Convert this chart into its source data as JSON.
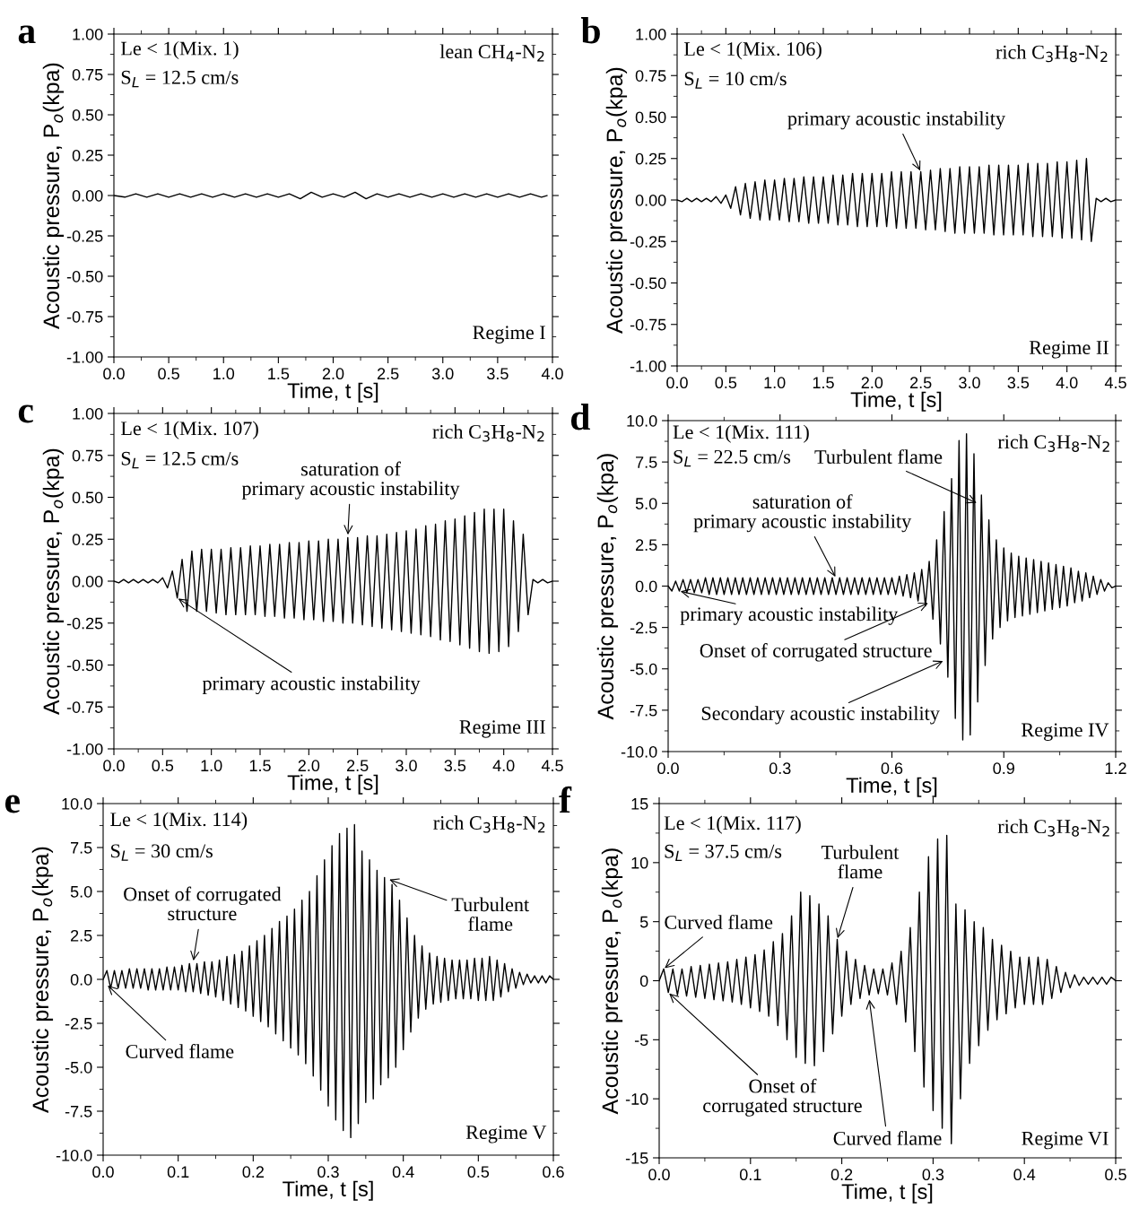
{
  "chart_data": [
    {
      "type": "line",
      "title": "a",
      "xlabel": "Time, t [s]",
      "ylabel": "Acoustic pressure, P$_{o}$(kpa)",
      "xlim": [
        0,
        4
      ],
      "xticks": [
        {
          "value": 0,
          "label": "0.0"
        },
        {
          "value": 0.5,
          "label": "0.5"
        },
        {
          "value": 1,
          "label": "1.0"
        },
        {
          "value": 1.5,
          "label": "1.5"
        },
        {
          "value": 2,
          "label": "2.0"
        },
        {
          "value": 2.5,
          "label": "2.5"
        },
        {
          "value": 3,
          "label": "3.0"
        },
        {
          "value": 3.5,
          "label": "3.5"
        },
        {
          "value": 4,
          "label": "4.0"
        }
      ],
      "ylim": [
        -1,
        1
      ],
      "yticks": [
        {
          "value": -1,
          "label": "-1.00"
        },
        {
          "value": -0.75,
          "label": "-0.75"
        },
        {
          "value": -0.5,
          "label": "-0.50"
        },
        {
          "value": -0.25,
          "label": "-0.25"
        },
        {
          "value": 0,
          "label": "0.00"
        },
        {
          "value": 0.25,
          "label": "0.25"
        },
        {
          "value": 0.5,
          "label": "0.50"
        },
        {
          "value": 0.75,
          "label": "0.75"
        },
        {
          "value": 1,
          "label": "1.00"
        }
      ],
      "annotations": [
        "Le < 1(Mix. 1)",
        "S$_{L}$ = 12.5 cm/s",
        "lean CH$_{4}$-N$_{2}$",
        "Regime I"
      ],
      "series": [
        {
          "color": "#000000",
          "x": [
            0,
            0.1,
            0.2,
            0.3,
            0.4,
            0.5,
            0.6,
            0.7,
            0.8,
            0.9,
            1.0,
            1.1,
            1.2,
            1.3,
            1.4,
            1.5,
            1.6,
            1.7,
            1.8,
            1.9,
            2.0,
            2.1,
            2.2,
            2.3,
            2.4,
            2.5,
            2.6,
            2.7,
            2.8,
            2.9,
            3.0,
            3.1,
            3.2,
            3.3,
            3.4,
            3.5,
            3.6,
            3.7,
            3.8,
            3.9,
            3.95
          ],
          "values": [
            0,
            -0.01,
            0.01,
            -0.01,
            0.01,
            -0.01,
            0.01,
            -0.01,
            0.01,
            -0.01,
            0.01,
            -0.01,
            0.01,
            -0.01,
            0.01,
            -0.01,
            0.01,
            -0.02,
            0.02,
            -0.01,
            0.01,
            -0.01,
            0.02,
            -0.02,
            0.01,
            -0.01,
            0.01,
            -0.01,
            0.01,
            -0.01,
            0.01,
            -0.01,
            0.01,
            -0.01,
            0.01,
            -0.01,
            0.01,
            -0.01,
            0.01,
            -0.01,
            0
          ]
        }
      ]
    },
    {
      "type": "line",
      "title": "b",
      "xlabel": "Time, t [s]",
      "ylabel": "Acoustic pressure, P$_{o}$(kpa)",
      "xlim": [
        0,
        4.5
      ],
      "xticks": [
        {
          "value": 0,
          "label": "0.0"
        },
        {
          "value": 0.5,
          "label": "0.5"
        },
        {
          "value": 1,
          "label": "1.0"
        },
        {
          "value": 1.5,
          "label": "1.5"
        },
        {
          "value": 2,
          "label": "2.0"
        },
        {
          "value": 2.5,
          "label": "2.5"
        },
        {
          "value": 3,
          "label": "3.0"
        },
        {
          "value": 3.5,
          "label": "3.5"
        },
        {
          "value": 4,
          "label": "4.0"
        },
        {
          "value": 4.5,
          "label": "4.5"
        }
      ],
      "ylim": [
        -1,
        1
      ],
      "yticks": [
        {
          "value": -1,
          "label": "-1.00"
        },
        {
          "value": -0.75,
          "label": "-0.75"
        },
        {
          "value": -0.5,
          "label": "-0.50"
        },
        {
          "value": -0.25,
          "label": "-0.25"
        },
        {
          "value": 0,
          "label": "0.00"
        },
        {
          "value": 0.25,
          "label": "0.25"
        },
        {
          "value": 0.5,
          "label": "0.50"
        },
        {
          "value": 0.75,
          "label": "0.75"
        },
        {
          "value": 1,
          "label": "1.00"
        }
      ],
      "annotations": [
        "Le < 1(Mix. 106)",
        "S$_{L}$ = 10 cm/s",
        "rich C$_{3}$H$_{8}$-N$_{2}$",
        {
          "text": "primary acoustic instability",
          "x": 2.5,
          "y": 0.17
        },
        "Regime II"
      ],
      "series": [
        {
          "color": "#000000",
          "x": [
            0,
            0.05,
            0.1,
            0.15,
            0.2,
            0.25,
            0.3,
            0.35,
            0.4,
            0.45,
            0.5,
            0.55,
            0.6,
            0.65,
            0.7,
            0.75,
            0.8,
            0.85,
            0.9,
            0.95,
            1.0,
            1.05,
            1.1,
            1.15,
            1.2,
            1.25,
            1.3,
            1.35,
            1.4,
            1.45,
            1.5,
            1.55,
            1.6,
            1.65,
            1.7,
            1.75,
            1.8,
            1.85,
            1.9,
            1.95,
            2.0,
            2.05,
            2.1,
            2.15,
            2.2,
            2.25,
            2.3,
            2.35,
            2.4,
            2.45,
            2.5,
            2.55,
            2.6,
            2.65,
            2.7,
            2.75,
            2.8,
            2.85,
            2.9,
            2.95,
            3.0,
            3.05,
            3.1,
            3.15,
            3.2,
            3.25,
            3.3,
            3.35,
            3.4,
            3.45,
            3.5,
            3.55,
            3.6,
            3.65,
            3.7,
            3.75,
            3.8,
            3.85,
            3.9,
            3.95,
            4.0,
            4.05,
            4.1,
            4.15,
            4.2,
            4.25,
            4.3,
            4.35,
            4.4,
            4.45,
            4.5
          ],
          "values": [
            0,
            -0.01,
            0.01,
            -0.01,
            0.01,
            -0.01,
            0.01,
            -0.01,
            0.02,
            -0.02,
            0.03,
            -0.05,
            0.08,
            -0.09,
            0.1,
            -0.11,
            0.11,
            -0.12,
            0.12,
            -0.12,
            0.12,
            -0.12,
            0.13,
            -0.13,
            0.13,
            -0.13,
            0.14,
            -0.14,
            0.14,
            -0.14,
            0.14,
            -0.14,
            0.15,
            -0.15,
            0.15,
            -0.15,
            0.16,
            -0.16,
            0.16,
            -0.16,
            0.16,
            -0.16,
            0.16,
            -0.16,
            0.17,
            -0.17,
            0.17,
            -0.17,
            0.17,
            -0.17,
            0.17,
            -0.18,
            0.18,
            -0.18,
            0.19,
            -0.19,
            0.19,
            -0.2,
            0.2,
            -0.2,
            0.2,
            -0.2,
            0.2,
            -0.2,
            0.21,
            -0.21,
            0.21,
            -0.21,
            0.21,
            -0.21,
            0.21,
            -0.21,
            0.22,
            -0.22,
            0.22,
            -0.22,
            0.22,
            -0.22,
            0.23,
            -0.23,
            0.23,
            -0.23,
            0.24,
            -0.24,
            0.25,
            -0.25,
            0.01,
            -0.01,
            0.01,
            -0.01,
            0
          ]
        }
      ]
    },
    {
      "type": "line",
      "title": "c",
      "xlabel": "Time, t [s]",
      "ylabel": "Acoustic pressure, P$_{o}$(kpa)",
      "xlim": [
        0,
        4.5
      ],
      "xticks": [
        {
          "value": 0,
          "label": "0.0"
        },
        {
          "value": 0.5,
          "label": "0.5"
        },
        {
          "value": 1,
          "label": "1.0"
        },
        {
          "value": 1.5,
          "label": "1.5"
        },
        {
          "value": 2,
          "label": "2.0"
        },
        {
          "value": 2.5,
          "label": "2.5"
        },
        {
          "value": 3,
          "label": "3.0"
        },
        {
          "value": 3.5,
          "label": "3.5"
        },
        {
          "value": 4,
          "label": "4.0"
        },
        {
          "value": 4.5,
          "label": "4.5"
        }
      ],
      "ylim": [
        -1,
        1
      ],
      "yticks": [
        {
          "value": -1,
          "label": "-1.00"
        },
        {
          "value": -0.75,
          "label": "-0.75"
        },
        {
          "value": -0.5,
          "label": "-0.50"
        },
        {
          "value": -0.25,
          "label": "-0.25"
        },
        {
          "value": 0,
          "label": "0.00"
        },
        {
          "value": 0.25,
          "label": "0.25"
        },
        {
          "value": 0.5,
          "label": "0.50"
        },
        {
          "value": 0.75,
          "label": "0.75"
        },
        {
          "value": 1,
          "label": "1.00"
        }
      ],
      "annotations": [
        "Le < 1(Mix. 107)",
        "S$_{L}$ = 12.5 cm/s",
        "rich C$_{3}$H$_{8}$-N$_{2}$",
        {
          "text": "saturation of\nprimary acoustic instability",
          "x": 2.4,
          "y": 0.27
        },
        {
          "text": "primary acoustic instability",
          "x": 0.65,
          "y": -0.1
        },
        "Regime III"
      ],
      "series": [
        {
          "color": "#000000",
          "x": [
            0,
            0.05,
            0.1,
            0.15,
            0.2,
            0.25,
            0.3,
            0.35,
            0.4,
            0.45,
            0.5,
            0.55,
            0.6,
            0.65,
            0.7,
            0.75,
            0.8,
            0.85,
            0.9,
            0.95,
            1.0,
            1.05,
            1.1,
            1.15,
            1.2,
            1.25,
            1.3,
            1.35,
            1.4,
            1.45,
            1.5,
            1.55,
            1.6,
            1.65,
            1.7,
            1.75,
            1.8,
            1.85,
            1.9,
            1.95,
            2.0,
            2.05,
            2.1,
            2.15,
            2.2,
            2.25,
            2.3,
            2.35,
            2.4,
            2.45,
            2.5,
            2.55,
            2.6,
            2.65,
            2.7,
            2.75,
            2.8,
            2.85,
            2.9,
            2.95,
            3.0,
            3.05,
            3.1,
            3.15,
            3.2,
            3.25,
            3.3,
            3.35,
            3.4,
            3.45,
            3.5,
            3.55,
            3.6,
            3.65,
            3.7,
            3.75,
            3.8,
            3.85,
            3.9,
            3.95,
            4.0,
            4.05,
            4.1,
            4.15,
            4.2,
            4.25,
            4.3,
            4.35,
            4.4,
            4.45,
            4.5
          ],
          "values": [
            0,
            -0.01,
            0.01,
            -0.01,
            0.01,
            -0.01,
            0.01,
            -0.01,
            0.01,
            -0.01,
            0.02,
            -0.04,
            0.06,
            -0.1,
            0.13,
            -0.18,
            0.18,
            -0.18,
            0.19,
            -0.18,
            0.19,
            -0.19,
            0.19,
            -0.2,
            0.2,
            -0.2,
            0.2,
            -0.2,
            0.21,
            -0.2,
            0.21,
            -0.21,
            0.22,
            -0.21,
            0.22,
            -0.22,
            0.23,
            -0.22,
            0.23,
            -0.23,
            0.24,
            -0.23,
            0.24,
            -0.24,
            0.25,
            -0.24,
            0.25,
            -0.25,
            0.26,
            -0.25,
            0.26,
            -0.26,
            0.27,
            -0.27,
            0.27,
            -0.28,
            0.28,
            -0.29,
            0.29,
            -0.3,
            0.3,
            -0.31,
            0.31,
            -0.32,
            0.33,
            -0.33,
            0.34,
            -0.35,
            0.36,
            -0.36,
            0.37,
            -0.38,
            0.39,
            -0.4,
            0.41,
            -0.42,
            0.43,
            -0.43,
            0.43,
            -0.42,
            0.43,
            -0.39,
            0.36,
            -0.3,
            0.28,
            -0.2,
            0.01,
            -0.01,
            0.01,
            -0.01,
            0
          ]
        }
      ]
    },
    {
      "type": "line",
      "title": "d",
      "xlabel": "Time, t [s]",
      "ylabel": "Acoustic pressure, P$_{o}$(kpa)",
      "xlim": [
        0,
        1.2
      ],
      "xticks": [
        {
          "value": 0,
          "label": "0.0"
        },
        0.3,
        0.6,
        0.9,
        1.2
      ],
      "ylim": [
        -10,
        10
      ],
      "yticks": [
        {
          "value": -10,
          "label": "-10.0"
        },
        -7.5,
        {
          "value": -5,
          "label": "-5.0"
        },
        -2.5,
        {
          "value": 0,
          "label": "0.0"
        },
        2.5,
        {
          "value": 5,
          "label": "5.0"
        },
        7.5,
        {
          "value": 10,
          "label": "10.0"
        }
      ],
      "annotations": [
        "Le < 1(Mix. 111)",
        "S$_{L}$ = 22.5 cm/s",
        "rich C$_{3}$H$_{8}$-N$_{2}$",
        {
          "text": "Turbulent flame",
          "x": 0.83,
          "y": 5.0
        },
        {
          "text": "saturation of\nprimary acoustic instability",
          "x": 0.45,
          "y": 0.5
        },
        {
          "text": "primary acoustic instability",
          "x": 0.03,
          "y": -0.3
        },
        {
          "text": "Onset of corrugated structure",
          "x": 0.7,
          "y": -1.0
        },
        {
          "text": "Secondary acoustic instability",
          "x": 0.74,
          "y": -4.5
        },
        "Regime IV"
      ],
      "series": [
        {
          "color": "#000000",
          "x": [
            0.0,
            0.01,
            0.02,
            0.03,
            0.04,
            0.05,
            0.06,
            0.07,
            0.08,
            0.09,
            0.1,
            0.11,
            0.12,
            0.13,
            0.14,
            0.15,
            0.16,
            0.17,
            0.18,
            0.19,
            0.2,
            0.21,
            0.22,
            0.23,
            0.24,
            0.25,
            0.26,
            0.27,
            0.28,
            0.29,
            0.3,
            0.31,
            0.32,
            0.33,
            0.34,
            0.35,
            0.36,
            0.37,
            0.38,
            0.39,
            0.4,
            0.41,
            0.42,
            0.43,
            0.44,
            0.45,
            0.46,
            0.47,
            0.48,
            0.49,
            0.5,
            0.51,
            0.52,
            0.53,
            0.54,
            0.55,
            0.56,
            0.57,
            0.58,
            0.59,
            0.6,
            0.61,
            0.62,
            0.63,
            0.64,
            0.65,
            0.66,
            0.67,
            0.68,
            0.69,
            0.7,
            0.71,
            0.72,
            0.73,
            0.74,
            0.75,
            0.76,
            0.77,
            0.78,
            0.79,
            0.8,
            0.81,
            0.82,
            0.83,
            0.84,
            0.85,
            0.86,
            0.87,
            0.88,
            0.89,
            0.9,
            0.91,
            0.92,
            0.93,
            0.94,
            0.95,
            0.96,
            0.97,
            0.98,
            0.99,
            1.0,
            1.01,
            1.02,
            1.03,
            1.04,
            1.05,
            1.06,
            1.07,
            1.08,
            1.09,
            1.1,
            1.11,
            1.12,
            1.13,
            1.14,
            1.15,
            1.16,
            1.17,
            1.18,
            1.19,
            1.2
          ],
          "values": [
            0,
            -0.3,
            0.3,
            -0.3,
            0.4,
            -0.4,
            0.4,
            -0.4,
            0.4,
            -0.4,
            0.5,
            -0.5,
            0.5,
            -0.5,
            0.5,
            -0.5,
            0.5,
            -0.5,
            0.5,
            -0.5,
            0.5,
            -0.5,
            0.5,
            -0.5,
            0.5,
            -0.5,
            0.5,
            -0.5,
            0.5,
            -0.5,
            0.5,
            -0.5,
            0.5,
            -0.5,
            0.5,
            -0.5,
            0.5,
            -0.5,
            0.5,
            -0.5,
            0.5,
            -0.5,
            0.5,
            -0.5,
            0.5,
            -0.5,
            0.5,
            -0.5,
            0.5,
            -0.5,
            0.5,
            -0.5,
            0.5,
            -0.5,
            0.5,
            -0.5,
            0.5,
            -0.5,
            0.5,
            -0.5,
            0.5,
            -0.5,
            0.6,
            -0.6,
            0.7,
            -0.7,
            0.8,
            -0.9,
            1.0,
            -1.2,
            1.5,
            -2.0,
            2.8,
            -3.5,
            4.5,
            -5.5,
            6.5,
            -8.0,
            8.8,
            -9.3,
            9.2,
            -9.0,
            8.0,
            -7.0,
            5.5,
            -4.8,
            4.0,
            -3.2,
            2.8,
            -2.5,
            2.3,
            -2.1,
            2.0,
            -1.9,
            1.8,
            -1.8,
            1.7,
            -1.7,
            1.6,
            -1.6,
            1.5,
            -1.5,
            1.4,
            -1.4,
            1.3,
            -1.3,
            1.2,
            -1.2,
            1.1,
            -1.0,
            0.9,
            -0.9,
            0.8,
            -0.7,
            0.6,
            -0.5,
            0.4,
            -0.3,
            0.2,
            -0.1,
            0
          ]
        }
      ]
    },
    {
      "type": "line",
      "title": "e",
      "xlabel": "Time, t [s]",
      "ylabel": "Acoustic pressure, P$_{o}$(kpa)",
      "xlim": [
        0,
        0.6
      ],
      "xticks": [
        {
          "value": 0,
          "label": "0.0"
        },
        0.1,
        0.2,
        0.3,
        0.4,
        0.5,
        0.6
      ],
      "ylim": [
        -10,
        10
      ],
      "yticks": [
        {
          "value": -10,
          "label": "-10.0"
        },
        -7.5,
        {
          "value": -5,
          "label": "-5.0"
        },
        -2.5,
        {
          "value": 0,
          "label": "0.0"
        },
        2.5,
        {
          "value": 5,
          "label": "5.0"
        },
        7.5,
        {
          "value": 10,
          "label": "10.0"
        }
      ],
      "annotations": [
        "Le < 1(Mix. 114)",
        "S$_{L}$ = 30 cm/s",
        "rich C$_{3}$H$_{8}$-N$_{2}$",
        {
          "text": "Onset of corrugated\nstructure",
          "x": 0.12,
          "y": 1.0
        },
        {
          "text": "Turbulent\nflame",
          "x": 0.38,
          "y": 5.7
        },
        {
          "text": "Curved flame",
          "x": 0.005,
          "y": -0.3
        },
        "Regime V"
      ],
      "series": [
        {
          "color": "#000000",
          "x": [
            0.0,
            0.005,
            0.01,
            0.015,
            0.02,
            0.025,
            0.03,
            0.035,
            0.04,
            0.045,
            0.05,
            0.055,
            0.06,
            0.065,
            0.07,
            0.075,
            0.08,
            0.085,
            0.09,
            0.095,
            0.1,
            0.105,
            0.11,
            0.115,
            0.12,
            0.125,
            0.13,
            0.135,
            0.14,
            0.145,
            0.15,
            0.155,
            0.16,
            0.165,
            0.17,
            0.175,
            0.18,
            0.185,
            0.19,
            0.195,
            0.2,
            0.205,
            0.21,
            0.215,
            0.22,
            0.225,
            0.23,
            0.235,
            0.24,
            0.245,
            0.25,
            0.255,
            0.26,
            0.265,
            0.27,
            0.275,
            0.28,
            0.285,
            0.29,
            0.295,
            0.3,
            0.305,
            0.31,
            0.315,
            0.32,
            0.325,
            0.33,
            0.335,
            0.34,
            0.345,
            0.35,
            0.355,
            0.36,
            0.365,
            0.37,
            0.375,
            0.38,
            0.385,
            0.39,
            0.395,
            0.4,
            0.405,
            0.41,
            0.415,
            0.42,
            0.425,
            0.43,
            0.435,
            0.44,
            0.445,
            0.45,
            0.455,
            0.46,
            0.465,
            0.47,
            0.475,
            0.48,
            0.485,
            0.49,
            0.495,
            0.5,
            0.505,
            0.51,
            0.515,
            0.52,
            0.525,
            0.53,
            0.535,
            0.54,
            0.545,
            0.55,
            0.555,
            0.56,
            0.565,
            0.57,
            0.575,
            0.58,
            0.585,
            0.59,
            0.595,
            0.6
          ],
          "values": [
            0,
            0.5,
            -0.5,
            0.5,
            -0.5,
            0.5,
            -0.5,
            0.6,
            -0.5,
            0.6,
            -0.5,
            0.6,
            -0.6,
            0.6,
            -0.6,
            0.6,
            -0.6,
            0.7,
            -0.6,
            0.7,
            -0.6,
            0.8,
            -0.7,
            0.9,
            -0.7,
            0.9,
            -0.8,
            1.0,
            -0.9,
            1.0,
            -1.0,
            1.1,
            -1.2,
            1.3,
            -1.4,
            1.4,
            -1.6,
            1.6,
            -1.8,
            1.9,
            -2.1,
            2.2,
            -2.4,
            2.5,
            -2.7,
            2.9,
            -3.1,
            3.3,
            -3.5,
            3.6,
            -3.9,
            4.0,
            -4.3,
            4.5,
            -4.8,
            5.0,
            -5.5,
            5.9,
            -6.3,
            6.8,
            -7.2,
            7.6,
            -8.0,
            8.3,
            -8.6,
            8.6,
            -9.0,
            8.8,
            -8.2,
            7.3,
            -7.0,
            6.8,
            -6.8,
            6.2,
            -6.0,
            5.8,
            -5.6,
            5.4,
            -5.0,
            4.5,
            -4.0,
            3.5,
            -3.0,
            2.5,
            -2.2,
            1.9,
            -1.7,
            1.5,
            -1.4,
            1.3,
            -1.3,
            1.2,
            -1.2,
            1.1,
            -1.1,
            1.1,
            -1.1,
            1.1,
            -1.1,
            1.2,
            -1.2,
            1.2,
            -1.2,
            1.3,
            -1.2,
            1.1,
            -1.0,
            0.9,
            -0.7,
            0.6,
            -0.5,
            0.4,
            -0.3,
            0.3,
            -0.2,
            0.2,
            -0.2,
            0.2,
            -0.2,
            0.2,
            0
          ]
        }
      ]
    },
    {
      "type": "line",
      "title": "f",
      "xlabel": "Time, t [s]",
      "ylabel": "Acoustic pressure, P$_{o}$(kpa)",
      "xlim": [
        0,
        0.5
      ],
      "xticks": [
        {
          "value": 0,
          "label": "0.0"
        },
        0.1,
        0.2,
        0.3,
        0.4,
        0.5
      ],
      "ylim": [
        -15,
        15
      ],
      "yticks": [
        -15,
        -10,
        -5,
        0,
        5,
        10,
        15
      ],
      "annotations": [
        "Le < 1(Mix. 117)",
        "S$_{L}$ = 37.5 cm/s",
        "rich C$_{3}$H$_{8}$-N$_{2}$",
        {
          "text": "Turbulent\nflame",
          "x": 0.195,
          "y": 3.5
        },
        {
          "text": "Curved flame",
          "x": 0.005,
          "y": 1.0
        },
        {
          "text": "Onset of\ncorrugated structure",
          "x": 0.01,
          "y": -1.0
        },
        {
          "text": "Curved flame",
          "x": 0.23,
          "y": -1.5
        },
        "Regime VI"
      ],
      "series": [
        {
          "color": "#000000",
          "x": [
            0.0,
            0.005,
            0.01,
            0.015,
            0.02,
            0.025,
            0.03,
            0.035,
            0.04,
            0.045,
            0.05,
            0.055,
            0.06,
            0.065,
            0.07,
            0.075,
            0.08,
            0.085,
            0.09,
            0.095,
            0.1,
            0.105,
            0.11,
            0.115,
            0.12,
            0.125,
            0.13,
            0.135,
            0.14,
            0.145,
            0.15,
            0.155,
            0.16,
            0.165,
            0.17,
            0.175,
            0.18,
            0.185,
            0.19,
            0.195,
            0.2,
            0.205,
            0.21,
            0.215,
            0.22,
            0.225,
            0.23,
            0.235,
            0.24,
            0.245,
            0.25,
            0.255,
            0.26,
            0.265,
            0.27,
            0.275,
            0.28,
            0.285,
            0.29,
            0.295,
            0.3,
            0.305,
            0.31,
            0.315,
            0.32,
            0.325,
            0.33,
            0.335,
            0.34,
            0.345,
            0.35,
            0.355,
            0.36,
            0.365,
            0.37,
            0.375,
            0.38,
            0.385,
            0.39,
            0.395,
            0.4,
            0.405,
            0.41,
            0.415,
            0.42,
            0.425,
            0.43,
            0.435,
            0.44,
            0.445,
            0.45,
            0.455,
            0.46,
            0.465,
            0.47,
            0.475,
            0.48,
            0.485,
            0.49,
            0.495,
            0.5
          ],
          "values": [
            0,
            1.0,
            -1.0,
            1.0,
            -1.2,
            1.0,
            -1.3,
            1.2,
            -1.4,
            1.3,
            -1.5,
            1.4,
            -1.6,
            1.5,
            -1.7,
            1.6,
            -1.8,
            1.8,
            -2.0,
            2.0,
            -2.3,
            2.2,
            -2.6,
            2.6,
            -3.0,
            3.3,
            -3.8,
            4.0,
            -5.0,
            5.5,
            -6.5,
            7.5,
            -7.0,
            7.2,
            -7.2,
            6.5,
            -6.0,
            5.5,
            -4.5,
            3.5,
            -3.0,
            2.5,
            -2.0,
            1.8,
            -1.5,
            1.3,
            -1.2,
            1.0,
            -1.1,
            1.0,
            -1.2,
            1.5,
            -2.0,
            2.5,
            -3.5,
            4.5,
            -6.0,
            7.5,
            -9.0,
            10.5,
            -11.0,
            12.0,
            -12.5,
            12.3,
            -13.8,
            6.5,
            -10.0,
            6.0,
            -7.0,
            5.0,
            -5.5,
            4.5,
            -4.2,
            3.5,
            -3.3,
            3.0,
            -2.8,
            2.5,
            -2.3,
            2.0,
            -2.0,
            2.0,
            -2.0,
            2.0,
            -2.0,
            1.8,
            -1.5,
            1.2,
            -1.0,
            0.7,
            -0.6,
            0.5,
            -0.4,
            0.3,
            -0.3,
            0.3,
            -0.3,
            0.3,
            -0.3,
            0.3,
            0
          ]
        }
      ]
    }
  ]
}
